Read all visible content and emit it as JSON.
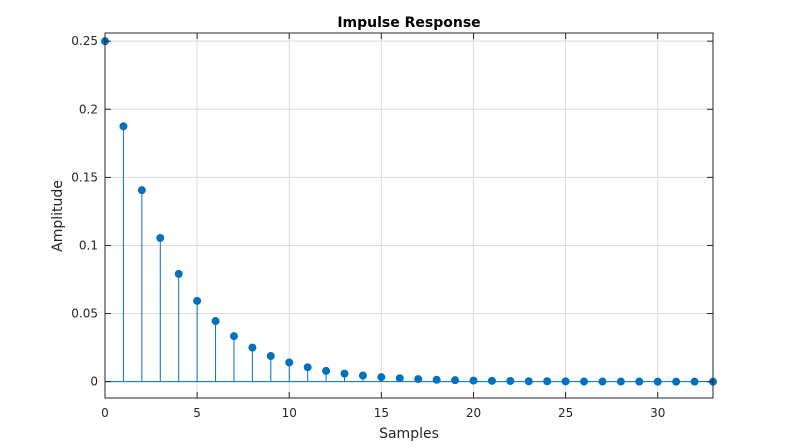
{
  "chart_data": {
    "type": "stem",
    "title": "Impulse Response",
    "xlabel": "Samples",
    "ylabel": "Amplitude",
    "xlim": [
      0,
      33
    ],
    "ylim": [
      -0.012,
      0.256
    ],
    "grid": true,
    "xticks": [
      0,
      5,
      10,
      15,
      20,
      25,
      30
    ],
    "xtick_labels": [
      "0",
      "5",
      "10",
      "15",
      "20",
      "25",
      "30"
    ],
    "yticks": [
      0,
      0.05,
      0.1,
      0.15,
      0.2,
      0.25
    ],
    "ytick_labels": [
      "0",
      "0.05",
      "0.1",
      "0.15",
      "0.2",
      "0.25"
    ],
    "color": "#0072BD",
    "x": [
      0,
      1,
      2,
      3,
      4,
      5,
      6,
      7,
      8,
      9,
      10,
      11,
      12,
      13,
      14,
      15,
      16,
      17,
      18,
      19,
      20,
      21,
      22,
      23,
      24,
      25,
      26,
      27,
      28,
      29,
      30,
      31,
      32,
      33
    ],
    "y": [
      0.25,
      0.1875,
      0.1406,
      0.1055,
      0.0791,
      0.0593,
      0.0445,
      0.0334,
      0.025,
      0.0188,
      0.0141,
      0.0106,
      0.0079,
      0.0059,
      0.0045,
      0.0033,
      0.0025,
      0.0019,
      0.0014,
      0.0011,
      0.0008,
      0.0006,
      0.0005,
      0.0003,
      0.0003,
      0.0002,
      0.0001,
      0.0001,
      0.0001,
      0.0001,
      0.0,
      0.0,
      0.0,
      0.0
    ]
  }
}
